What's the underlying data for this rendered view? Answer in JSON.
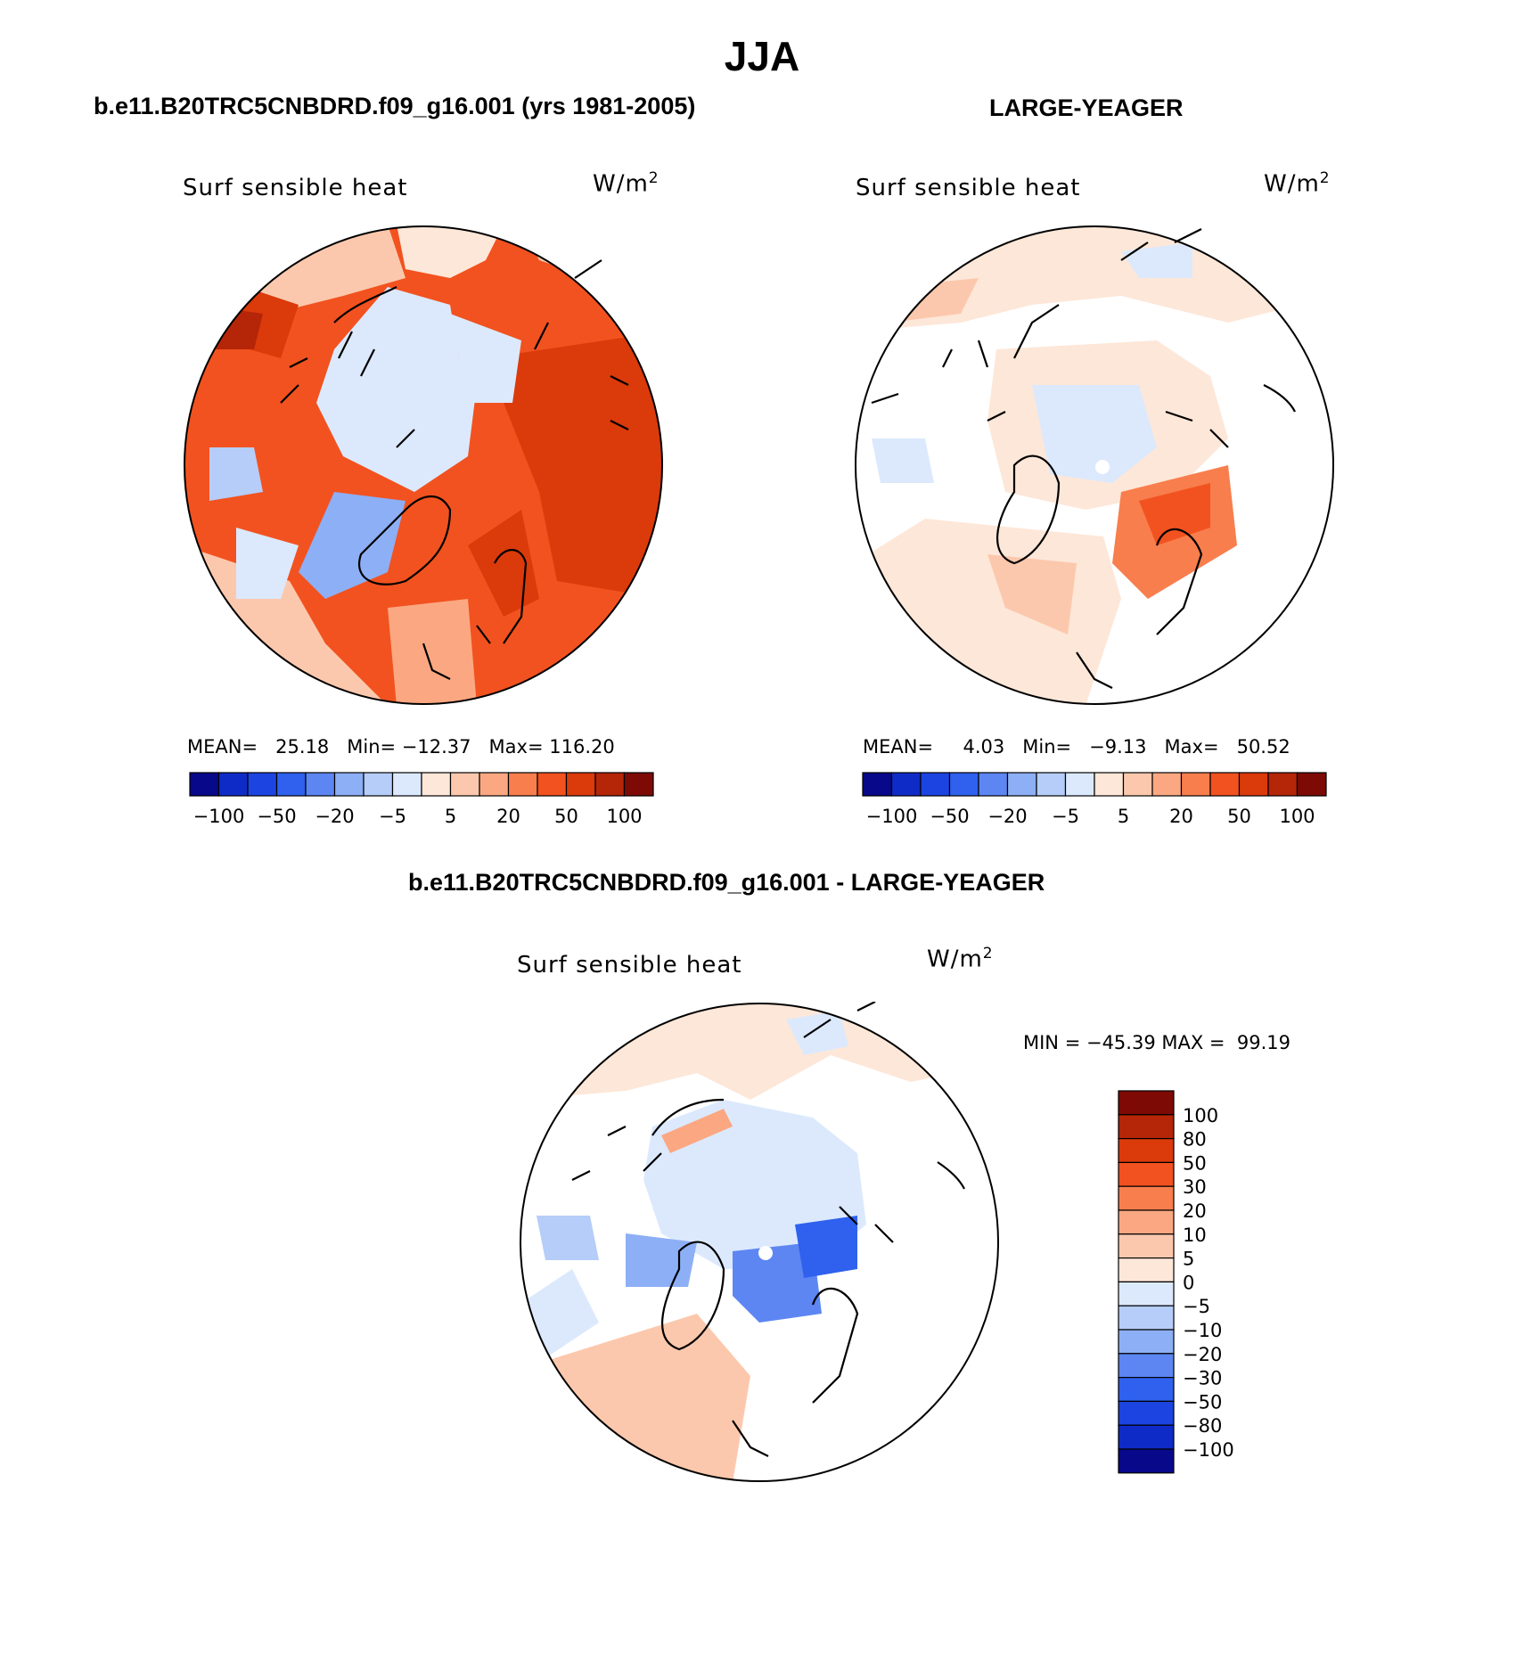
{
  "title": "JJA",
  "panels": [
    {
      "case": "b.e11.B20TRC5CNBDRD.f09_g16.001 (yrs 1981-2005)",
      "variable": "Surf sensible heat",
      "units": "W/m",
      "units_sup": "2",
      "stats": {
        "mean_label": "MEAN=",
        "mean": "25.18",
        "min_label": "Min=",
        "min": "−12.37",
        "max_label": "Max=",
        "max": "116.20"
      }
    },
    {
      "case": "LARGE-YEAGER",
      "variable": "Surf sensible heat",
      "units": "W/m",
      "units_sup": "2",
      "stats": {
        "mean_label": "MEAN=",
        "mean": "4.03",
        "min_label": "Min=",
        "min": "−9.13",
        "max_label": "Max=",
        "max": "50.52"
      }
    },
    {
      "case": "b.e11.B20TRC5CNBDRD.f09_g16.001 - LARGE-YEAGER",
      "variable": "Surf sensible heat",
      "units": "W/m",
      "units_sup": "2",
      "minmax": "MIN = −45.39 MAX =  99.19"
    }
  ],
  "top_colorbar": {
    "colors": [
      "#08088a",
      "#0f2bc7",
      "#1c44e0",
      "#2f61ee",
      "#5d86f2",
      "#8daff6",
      "#b6cdf9",
      "#dce9fd",
      "#fde7d8",
      "#fcc8ad",
      "#fba882",
      "#f87e4d",
      "#f2521f",
      "#db3a0a",
      "#b52508",
      "#7e0a05"
    ],
    "labels": [
      "−100",
      "−50",
      "−20",
      "−5",
      "5",
      "20",
      "50",
      "100"
    ]
  },
  "diff_colorbar": {
    "colors": [
      "#7e0a05",
      "#b52508",
      "#db3a0a",
      "#f2521f",
      "#f87e4d",
      "#fba882",
      "#fcc8ad",
      "#fde7d8",
      "#dce9fd",
      "#b6cdf9",
      "#8daff6",
      "#5d86f2",
      "#2f61ee",
      "#1c44e0",
      "#0f2bc7",
      "#08088a"
    ],
    "labels": [
      "100",
      "80",
      "50",
      "30",
      "20",
      "10",
      "5",
      "0",
      "−5",
      "−10",
      "−20",
      "−30",
      "−50",
      "−80",
      "−100"
    ]
  }
}
